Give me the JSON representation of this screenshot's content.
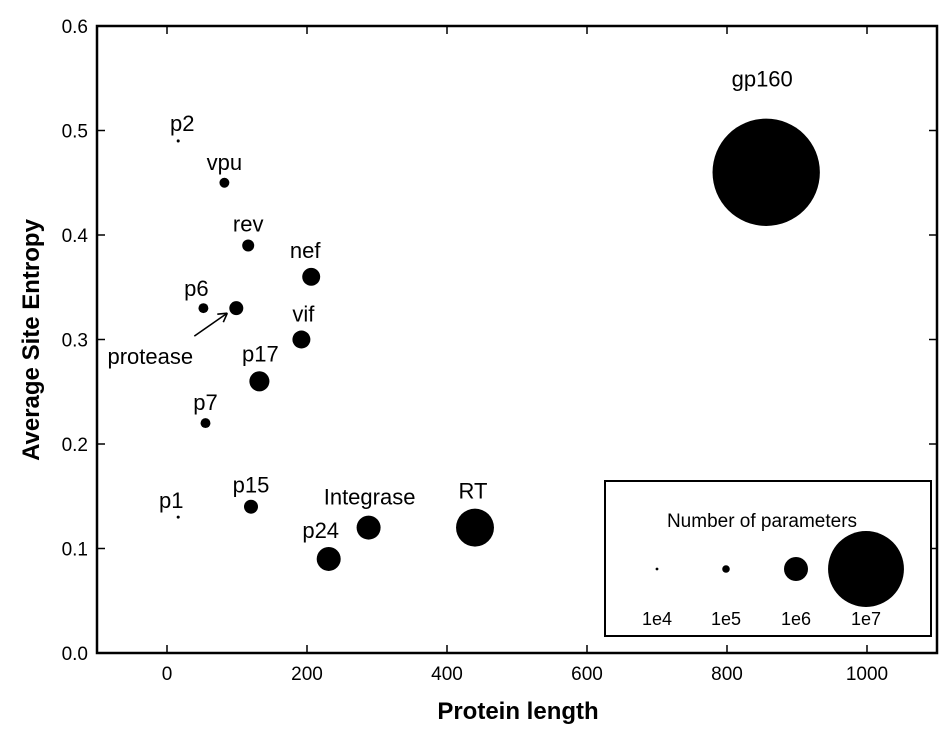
{
  "chart_data": {
    "type": "scatter",
    "title": "",
    "xlabel": "Protein length",
    "ylabel": "Average Site Entropy",
    "xlim": [
      -100,
      1100
    ],
    "ylim": [
      0.0,
      0.6
    ],
    "xticks": [
      "0",
      "200",
      "400",
      "600",
      "800",
      "1000"
    ],
    "yticks": [
      "0.0",
      "0.1",
      "0.2",
      "0.3",
      "0.4",
      "0.5",
      "0.6"
    ],
    "grid": false,
    "size_encoding": "Number of parameters",
    "points": [
      {
        "label": "p2",
        "x": 16,
        "y": 0.49,
        "params": 16000
      },
      {
        "label": "vpu",
        "x": 82,
        "y": 0.45,
        "params": 170000
      },
      {
        "label": "rev",
        "x": 116,
        "y": 0.39,
        "params": 250000
      },
      {
        "label": "nef",
        "x": 206,
        "y": 0.36,
        "params": 560000
      },
      {
        "label": "p6",
        "x": 52,
        "y": 0.33,
        "params": 170000
      },
      {
        "label": "protease",
        "x": 99,
        "y": 0.33,
        "params": 340000
      },
      {
        "label": "vif",
        "x": 192,
        "y": 0.3,
        "params": 560000
      },
      {
        "label": "p17",
        "x": 132,
        "y": 0.26,
        "params": 700000
      },
      {
        "label": "p7",
        "x": 55,
        "y": 0.22,
        "params": 170000
      },
      {
        "label": "p15",
        "x": 120,
        "y": 0.14,
        "params": 340000
      },
      {
        "label": "p1",
        "x": 16,
        "y": 0.13,
        "params": 16000
      },
      {
        "label": "Integrase",
        "x": 288,
        "y": 0.12,
        "params": 1000000
      },
      {
        "label": "p24",
        "x": 231,
        "y": 0.09,
        "params": 1000000
      },
      {
        "label": "RT",
        "x": 440,
        "y": 0.12,
        "params": 2500000
      },
      {
        "label": "gp160",
        "x": 856,
        "y": 0.46,
        "params": 20000000
      }
    ],
    "legend": {
      "title": "Number of parameters",
      "placement": "bottom-right",
      "entries": [
        {
          "label": "1e4",
          "params": 10000
        },
        {
          "label": "1e5",
          "params": 100000
        },
        {
          "label": "1e6",
          "params": 1000000
        },
        {
          "label": "1e7",
          "params": 10000000
        }
      ]
    },
    "marker_color": "#000000"
  }
}
